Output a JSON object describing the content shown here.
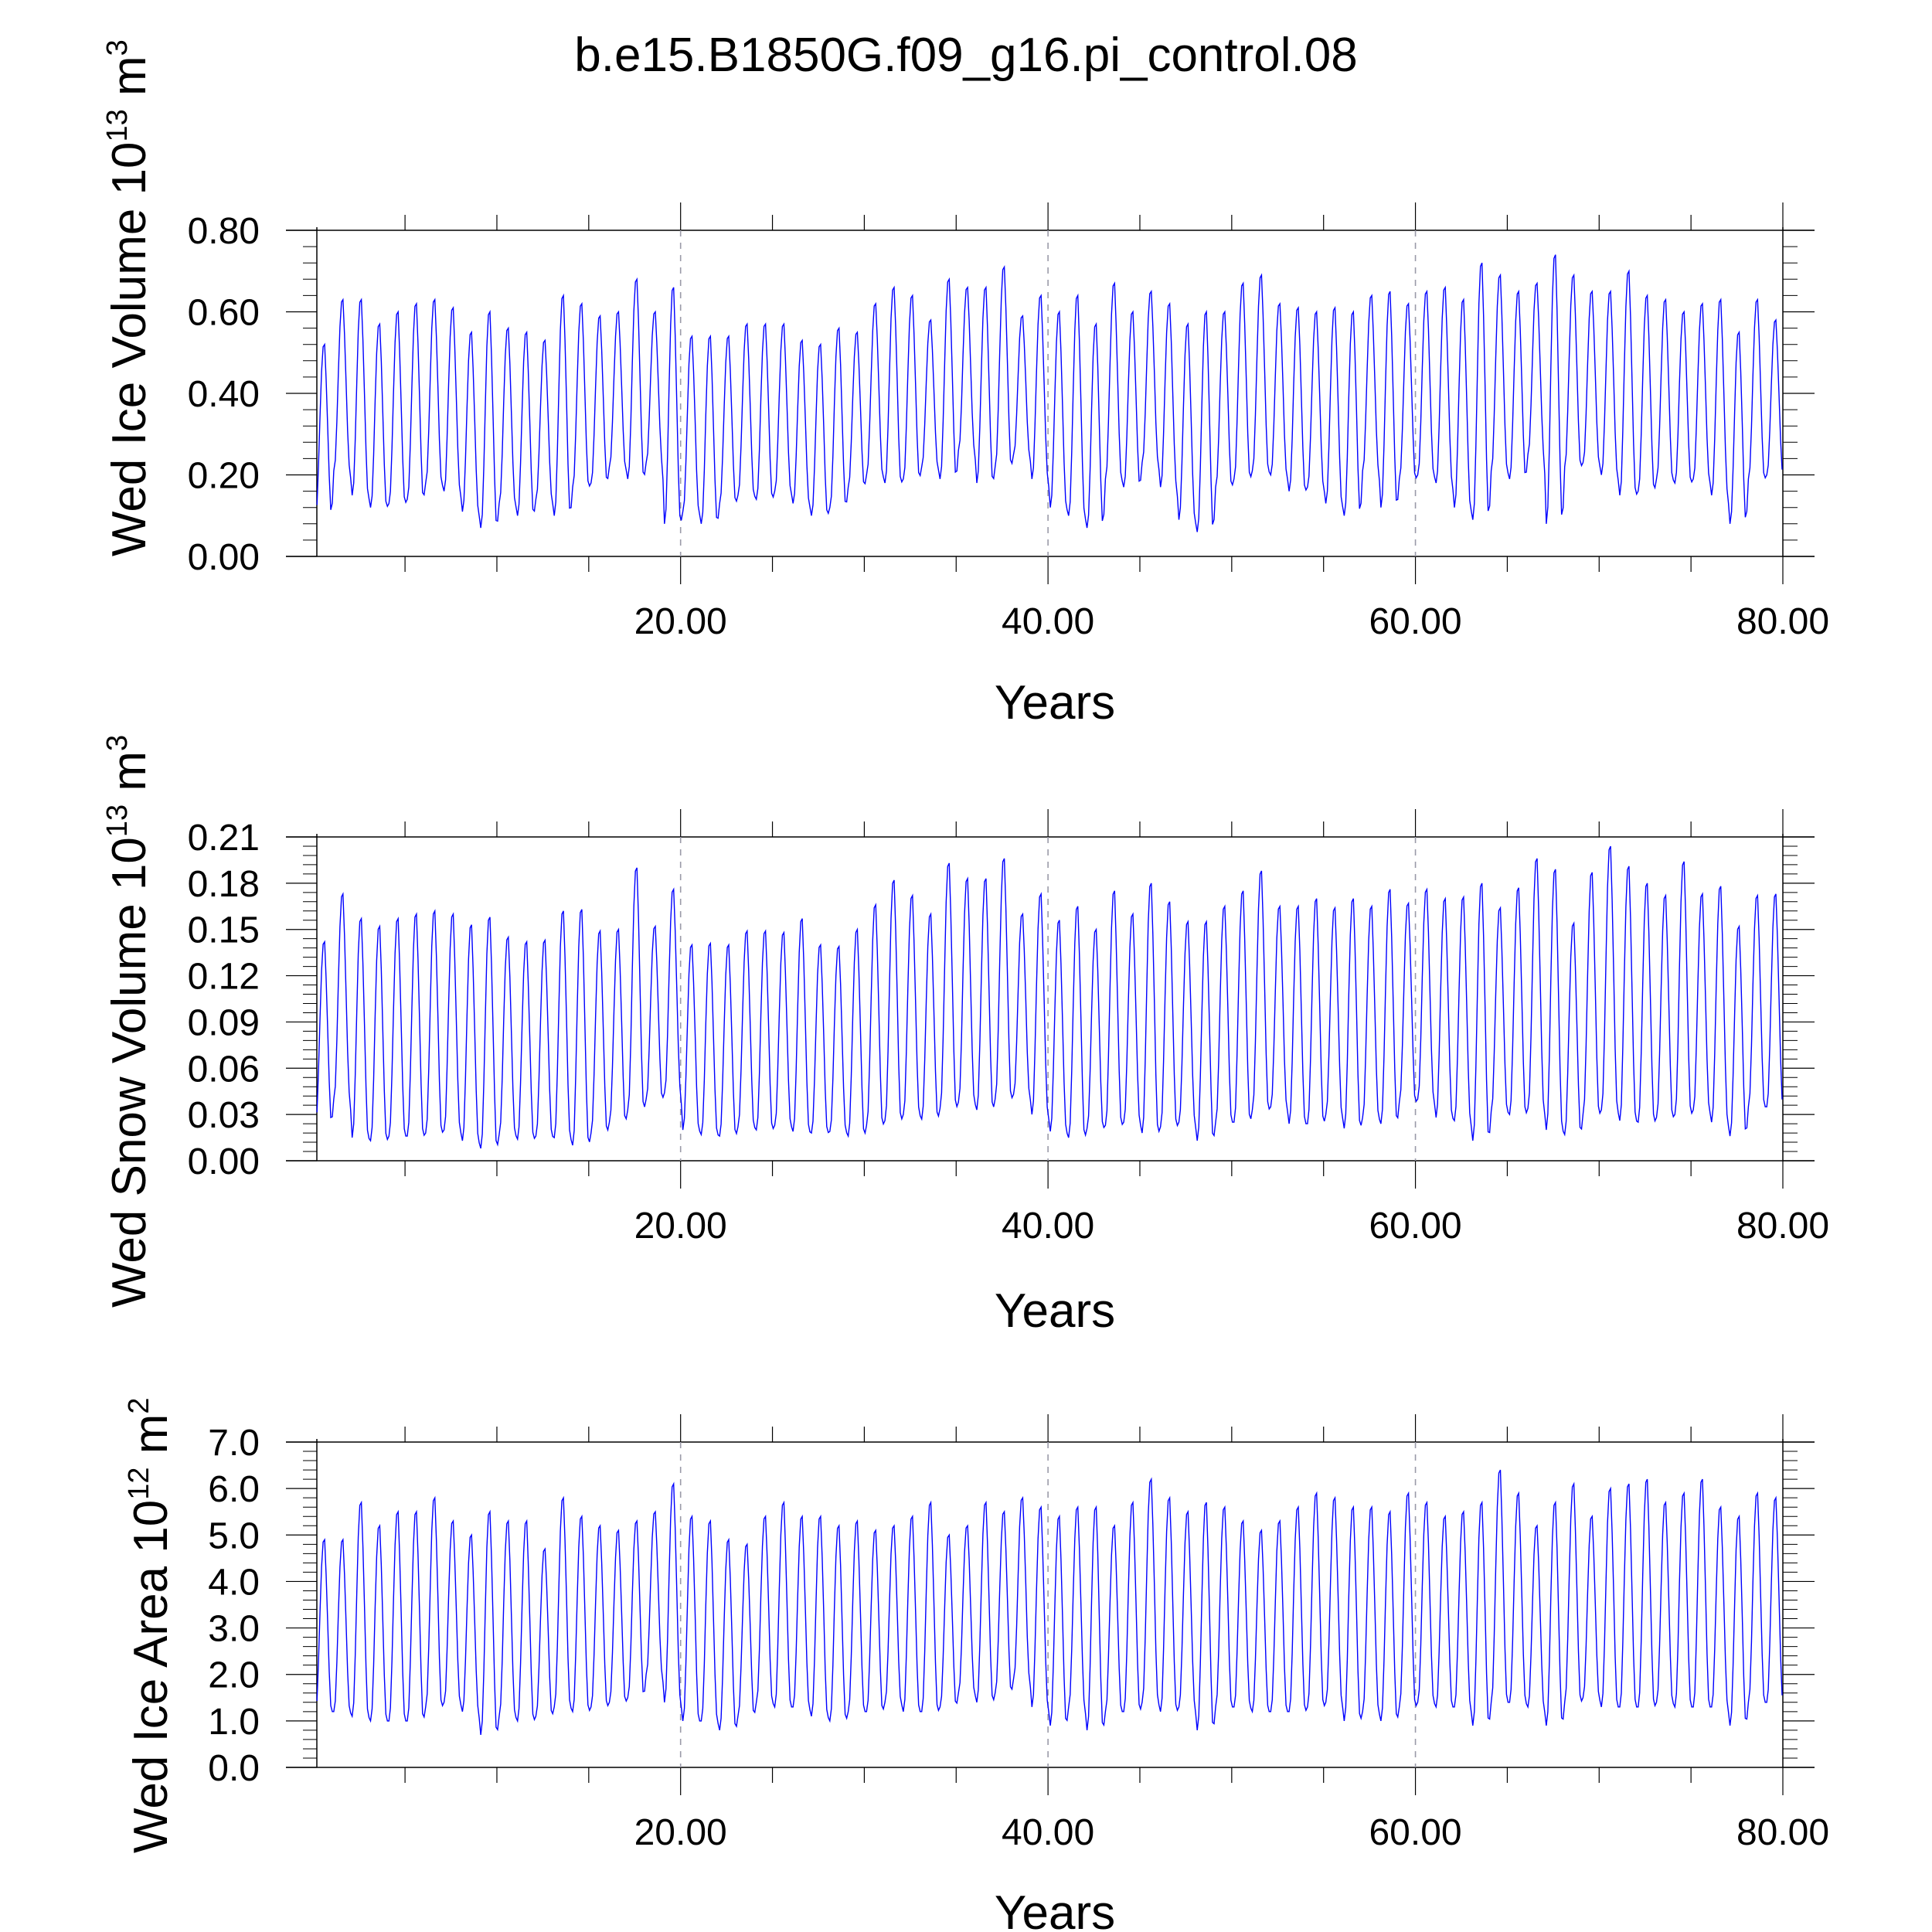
{
  "chart_data": {
    "title": "b.e15.B1850G.f09_g16.pi_control.08",
    "type": "line",
    "series_color": "#0000ff",
    "refline_color": "#9a9aa8",
    "panels": [
      {
        "ylabel_main": "Wed Ice Volume 10",
        "ylabel_exp": "13",
        "ylabel_tail": " m",
        "ylabel_exp2": "3",
        "xlabel": "Years",
        "xlim": [
          0.2,
          80
        ],
        "ylim": [
          0,
          0.8
        ],
        "xticks": [
          20,
          40,
          60,
          80
        ],
        "xtick_labels": [
          "20.00",
          "40.00",
          "60.00",
          "80.00"
        ],
        "yticks": [
          0,
          0.2,
          0.4,
          0.6,
          0.8
        ],
        "ytick_labels": [
          "0.00",
          "0.20",
          "0.40",
          "0.60",
          "0.80"
        ],
        "reflines_x": [
          20,
          40,
          60
        ],
        "series": [
          {
            "x": [
              0.5,
              1.5,
              2.5,
              3.5,
              4.5,
              5.5,
              6.5,
              7.5,
              8.5,
              9.5,
              10.5,
              11.5,
              12.5,
              13.5,
              14.5,
              15.5,
              16.5,
              17.5,
              18.5,
              19.5,
              20.5,
              21.5,
              22.5,
              23.5,
              24.5,
              25.5,
              26.5,
              27.5,
              28.5,
              29.5,
              30.5,
              31.5,
              32.5,
              33.5,
              34.5,
              35.5,
              36.5,
              37.5,
              38.5,
              39.5,
              40.5,
              41.5,
              42.5,
              43.5,
              44.5,
              45.5,
              46.5,
              47.5,
              48.5,
              49.5,
              50.5,
              51.5,
              52.5,
              53.5,
              54.5,
              55.5,
              56.5,
              57.5,
              58.5,
              59.5,
              60.5,
              61.5,
              62.5,
              63.5,
              64.5,
              65.5,
              66.5,
              67.5,
              68.5,
              69.5,
              70.5,
              71.5,
              72.5,
              73.5,
              74.5,
              75.5,
              76.5,
              77.5,
              78.5,
              79.5
            ],
            "max": [
              0.52,
              0.63,
              0.63,
              0.57,
              0.6,
              0.62,
              0.63,
              0.61,
              0.55,
              0.6,
              0.56,
              0.55,
              0.53,
              0.64,
              0.62,
              0.59,
              0.6,
              0.68,
              0.6,
              0.66,
              0.54,
              0.54,
              0.54,
              0.57,
              0.57,
              0.57,
              0.53,
              0.52,
              0.56,
              0.55,
              0.62,
              0.66,
              0.64,
              0.58,
              0.68,
              0.66,
              0.66,
              0.71,
              0.59,
              0.64,
              0.6,
              0.64,
              0.57,
              0.67,
              0.6,
              0.65,
              0.62,
              0.57,
              0.6,
              0.6,
              0.67,
              0.69,
              0.62,
              0.61,
              0.6,
              0.61,
              0.6,
              0.64,
              0.65,
              0.62,
              0.65,
              0.66,
              0.63,
              0.72,
              0.69,
              0.65,
              0.67,
              0.74,
              0.69,
              0.65,
              0.65,
              0.7,
              0.64,
              0.63,
              0.6,
              0.62,
              0.63,
              0.55,
              0.63,
              0.58
            ],
            "min": [
              0.1,
              0.21,
              0.15,
              0.12,
              0.13,
              0.14,
              0.18,
              0.16,
              0.11,
              0.07,
              0.13,
              0.1,
              0.14,
              0.1,
              0.17,
              0.18,
              0.22,
              0.19,
              0.23,
              0.08,
              0.11,
              0.08,
              0.13,
              0.15,
              0.14,
              0.16,
              0.13,
              0.1,
              0.12,
              0.17,
              0.2,
              0.18,
              0.19,
              0.22,
              0.19,
              0.26,
              0.18,
              0.22,
              0.25,
              0.19,
              0.12,
              0.1,
              0.07,
              0.19,
              0.17,
              0.23,
              0.17,
              0.09,
              0.06,
              0.17,
              0.19,
              0.21,
              0.2,
              0.16,
              0.17,
              0.13,
              0.1,
              0.21,
              0.12,
              0.19,
              0.2,
              0.18,
              0.12,
              0.09,
              0.21,
              0.19,
              0.25,
              0.08,
              0.22,
              0.23,
              0.2,
              0.15,
              0.16,
              0.19,
              0.18,
              0.19,
              0.15,
              0.08,
              0.19,
              0.2
            ]
          }
        ]
      },
      {
        "ylabel_main": "Wed Snow Volume 10",
        "ylabel_exp": "13",
        "ylabel_tail": " m",
        "ylabel_exp2": "3",
        "xlabel": "Years",
        "xlim": [
          0.2,
          80
        ],
        "ylim": [
          0,
          0.21
        ],
        "xticks": [
          20,
          40,
          60,
          80
        ],
        "xtick_labels": [
          "20.00",
          "40.00",
          "60.00",
          "80.00"
        ],
        "yticks": [
          0,
          0.03,
          0.06,
          0.09,
          0.12,
          0.15,
          0.18,
          0.21
        ],
        "ytick_labels": [
          "0.00",
          "0.03",
          "0.06",
          "0.09",
          "0.12",
          "0.15",
          "0.18",
          "0.21"
        ],
        "reflines_x": [
          20,
          40,
          60
        ],
        "series": [
          {
            "x": [
              0.5,
              1.5,
              2.5,
              3.5,
              4.5,
              5.5,
              6.5,
              7.5,
              8.5,
              9.5,
              10.5,
              11.5,
              12.5,
              13.5,
              14.5,
              15.5,
              16.5,
              17.5,
              18.5,
              19.5,
              20.5,
              21.5,
              22.5,
              23.5,
              24.5,
              25.5,
              26.5,
              27.5,
              28.5,
              29.5,
              30.5,
              31.5,
              32.5,
              33.5,
              34.5,
              35.5,
              36.5,
              37.5,
              38.5,
              39.5,
              40.5,
              41.5,
              42.5,
              43.5,
              44.5,
              45.5,
              46.5,
              47.5,
              48.5,
              49.5,
              50.5,
              51.5,
              52.5,
              53.5,
              54.5,
              55.5,
              56.5,
              57.5,
              58.5,
              59.5,
              60.5,
              61.5,
              62.5,
              63.5,
              64.5,
              65.5,
              66.5,
              67.5,
              68.5,
              69.5,
              70.5,
              71.5,
              72.5,
              73.5,
              74.5,
              75.5,
              76.5,
              77.5,
              78.5,
              79.5
            ],
            "max": [
              0.142,
              0.173,
              0.157,
              0.152,
              0.157,
              0.16,
              0.162,
              0.16,
              0.153,
              0.158,
              0.145,
              0.142,
              0.143,
              0.162,
              0.163,
              0.149,
              0.15,
              0.19,
              0.152,
              0.176,
              0.14,
              0.141,
              0.14,
              0.149,
              0.149,
              0.148,
              0.157,
              0.14,
              0.139,
              0.15,
              0.166,
              0.182,
              0.172,
              0.16,
              0.193,
              0.183,
              0.183,
              0.196,
              0.16,
              0.173,
              0.156,
              0.165,
              0.15,
              0.175,
              0.16,
              0.18,
              0.168,
              0.155,
              0.155,
              0.165,
              0.175,
              0.188,
              0.165,
              0.165,
              0.17,
              0.164,
              0.17,
              0.165,
              0.176,
              0.167,
              0.176,
              0.17,
              0.171,
              0.18,
              0.164,
              0.177,
              0.196,
              0.189,
              0.154,
              0.187,
              0.204,
              0.191,
              0.18,
              0.172,
              0.194,
              0.173,
              0.178,
              0.152,
              0.172,
              0.173
            ],
            "min": [
              0.024,
              0.04,
              0.015,
              0.013,
              0.016,
              0.016,
              0.018,
              0.02,
              0.013,
              0.008,
              0.017,
              0.014,
              0.016,
              0.015,
              0.01,
              0.018,
              0.025,
              0.033,
              0.04,
              0.044,
              0.02,
              0.017,
              0.016,
              0.022,
              0.02,
              0.023,
              0.019,
              0.018,
              0.019,
              0.016,
              0.023,
              0.026,
              0.03,
              0.027,
              0.034,
              0.038,
              0.033,
              0.04,
              0.043,
              0.03,
              0.019,
              0.015,
              0.021,
              0.023,
              0.025,
              0.018,
              0.022,
              0.025,
              0.013,
              0.025,
              0.025,
              0.033,
              0.035,
              0.024,
              0.024,
              0.03,
              0.021,
              0.028,
              0.024,
              0.038,
              0.04,
              0.028,
              0.026,
              0.013,
              0.032,
              0.03,
              0.034,
              0.02,
              0.017,
              0.03,
              0.033,
              0.026,
              0.025,
              0.028,
              0.03,
              0.033,
              0.025,
              0.016,
              0.035,
              0.035
            ]
          }
        ]
      },
      {
        "ylabel_main": "Wed Ice Area 10",
        "ylabel_exp": "12",
        "ylabel_tail": " m",
        "ylabel_exp2": "2",
        "xlabel": "Years",
        "xlim": [
          0.2,
          80
        ],
        "ylim": [
          0,
          7
        ],
        "xticks": [
          20,
          40,
          60,
          80
        ],
        "xtick_labels": [
          "20.00",
          "40.00",
          "60.00",
          "80.00"
        ],
        "yticks": [
          0,
          1,
          2,
          3,
          4,
          5,
          6,
          7
        ],
        "ytick_labels": [
          "0.0",
          "1.0",
          "2.0",
          "3.0",
          "4.0",
          "5.0",
          "6.0",
          "7.0"
        ],
        "reflines_x": [
          20,
          40,
          60
        ],
        "series": [
          {
            "x": [
              0.5,
              1.5,
              2.5,
              3.5,
              4.5,
              5.5,
              6.5,
              7.5,
              8.5,
              9.5,
              10.5,
              11.5,
              12.5,
              13.5,
              14.5,
              15.5,
              16.5,
              17.5,
              18.5,
              19.5,
              20.5,
              21.5,
              22.5,
              23.5,
              24.5,
              25.5,
              26.5,
              27.5,
              28.5,
              29.5,
              30.5,
              31.5,
              32.5,
              33.5,
              34.5,
              35.5,
              36.5,
              37.5,
              38.5,
              39.5,
              40.5,
              41.5,
              42.5,
              43.5,
              44.5,
              45.5,
              46.5,
              47.5,
              48.5,
              49.5,
              50.5,
              51.5,
              52.5,
              53.5,
              54.5,
              55.5,
              56.5,
              57.5,
              58.5,
              59.5,
              60.5,
              61.5,
              62.5,
              63.5,
              64.5,
              65.5,
              66.5,
              67.5,
              68.5,
              69.5,
              70.5,
              71.5,
              72.5,
              73.5,
              74.5,
              75.5,
              76.5,
              77.5,
              78.5,
              79.5
            ],
            "max": [
              4.9,
              4.9,
              5.7,
              5.2,
              5.5,
              5.5,
              5.8,
              5.3,
              5.0,
              5.5,
              5.3,
              5.3,
              4.7,
              5.8,
              5.4,
              5.2,
              5.1,
              5.3,
              5.5,
              6.1,
              5.4,
              5.3,
              4.9,
              4.8,
              5.4,
              5.7,
              5.4,
              5.4,
              5.2,
              5.3,
              5.1,
              5.2,
              5.4,
              5.7,
              5.0,
              5.2,
              5.7,
              5.5,
              5.8,
              5.6,
              5.4,
              5.6,
              5.6,
              5.2,
              5.7,
              6.2,
              5.8,
              5.5,
              5.7,
              5.6,
              5.3,
              5.1,
              5.3,
              5.6,
              5.9,
              5.8,
              5.6,
              5.6,
              5.5,
              5.9,
              5.7,
              5.4,
              5.5,
              5.7,
              6.4,
              5.9,
              5.2,
              5.7,
              6.1,
              5.4,
              6.0,
              6.1,
              6.2,
              5.7,
              5.9,
              6.2,
              5.6,
              5.4,
              5.9,
              5.8
            ],
            "min": [
              1.2,
              1.2,
              1.1,
              1.0,
              1.0,
              1.0,
              1.3,
              1.4,
              1.2,
              0.7,
              1.1,
              1.0,
              1.1,
              1.3,
              1.2,
              1.3,
              1.4,
              1.5,
              2.0,
              1.4,
              1.0,
              1.0,
              0.8,
              1.1,
              1.4,
              1.3,
              1.3,
              1.1,
              1.0,
              1.2,
              1.2,
              1.4,
              1.2,
              1.2,
              1.3,
              1.6,
              1.4,
              1.6,
              1.9,
              1.3,
              0.9,
              1.3,
              0.8,
              1.2,
              1.2,
              1.4,
              1.2,
              1.3,
              0.8,
              1.3,
              1.3,
              1.2,
              1.2,
              1.2,
              1.3,
              1.4,
              1.0,
              1.2,
              1.0,
              1.3,
              1.4,
              1.3,
              1.3,
              0.9,
              1.4,
              1.4,
              1.3,
              0.9,
              1.4,
              1.5,
              1.3,
              1.3,
              1.3,
              1.4,
              1.3,
              1.3,
              1.3,
              0.9,
              1.4,
              1.4
            ]
          }
        ]
      }
    ]
  }
}
